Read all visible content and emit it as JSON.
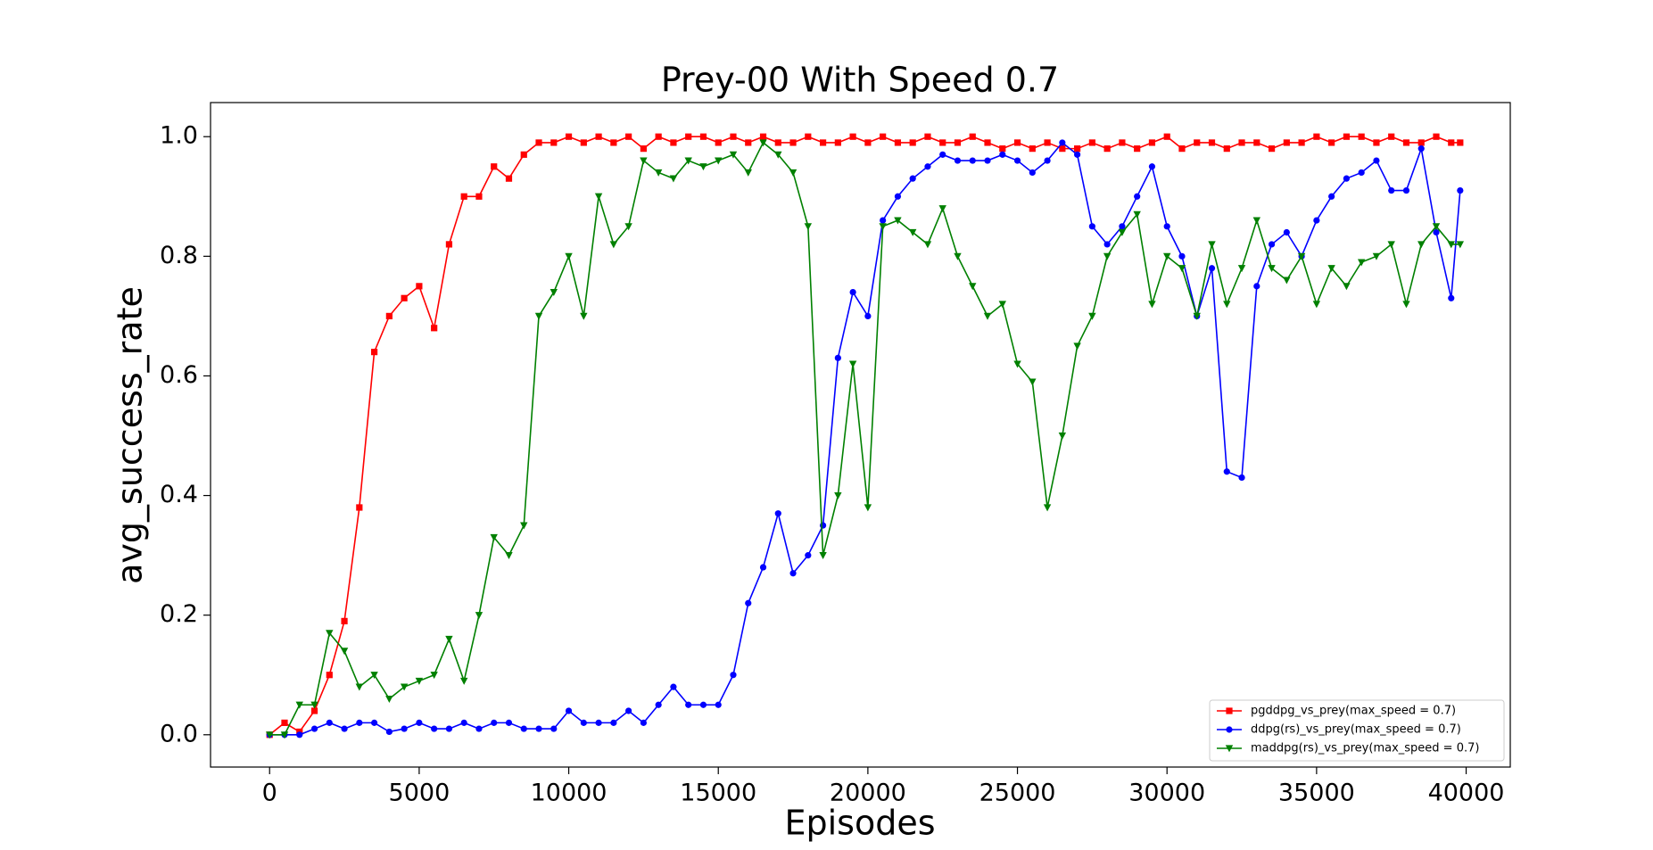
{
  "chart_data": {
    "type": "line",
    "title": "Prey-00 With Speed 0.7",
    "x_label": "Episodes",
    "y_label": "avg_success_rate",
    "x": [
      0,
      500,
      1000,
      1500,
      2000,
      2500,
      3000,
      3500,
      4000,
      4500,
      5000,
      5500,
      6000,
      6500,
      7000,
      7500,
      8000,
      8500,
      9000,
      9500,
      10000,
      10500,
      11000,
      11500,
      12000,
      12500,
      13000,
      13500,
      14000,
      14500,
      15000,
      15500,
      16000,
      16500,
      17000,
      17500,
      18000,
      18500,
      19000,
      19500,
      20000,
      20500,
      21000,
      21500,
      22000,
      22500,
      23000,
      23500,
      24000,
      24500,
      25000,
      25500,
      26000,
      26500,
      27000,
      27500,
      28000,
      28500,
      29000,
      29500,
      30000,
      30500,
      31000,
      31500,
      32000,
      32500,
      33000,
      33500,
      34000,
      34500,
      35000,
      35500,
      36000,
      36500,
      37000,
      37500,
      38000,
      38500,
      39000,
      39500,
      39800
    ],
    "series": [
      {
        "name": "pgddpg_vs_prey(max_speed = 0.7)",
        "color": "#ff0000",
        "marker": "square",
        "values": [
          0,
          0.02,
          0.005,
          0.04,
          0.1,
          0.19,
          0.38,
          0.64,
          0.7,
          0.73,
          0.75,
          0.68,
          0.82,
          0.9,
          0.9,
          0.95,
          0.93,
          0.97,
          0.99,
          0.99,
          1.0,
          0.99,
          1.0,
          0.99,
          1.0,
          0.98,
          1.0,
          0.99,
          1.0,
          1.0,
          0.99,
          1.0,
          0.99,
          1.0,
          0.99,
          0.99,
          1.0,
          0.99,
          0.99,
          1.0,
          0.99,
          1.0,
          0.99,
          0.99,
          1.0,
          0.99,
          0.99,
          1.0,
          0.99,
          0.98,
          0.99,
          0.98,
          0.99,
          0.98,
          0.98,
          0.99,
          0.98,
          0.99,
          0.98,
          0.99,
          1.0,
          0.98,
          0.99,
          0.99,
          0.98,
          0.99,
          0.99,
          0.98,
          0.99,
          0.99,
          1.0,
          0.99,
          1.0,
          1.0,
          0.99,
          1.0,
          0.99,
          0.99,
          1.0,
          0.99,
          0.99
        ]
      },
      {
        "name": "ddpg(rs)_vs_prey(max_speed = 0.7)",
        "color": "#0000ff",
        "marker": "circle",
        "values": [
          0,
          0,
          0,
          0.01,
          0.02,
          0.01,
          0.02,
          0.02,
          0.005,
          0.01,
          0.02,
          0.01,
          0.01,
          0.02,
          0.01,
          0.02,
          0.02,
          0.01,
          0.01,
          0.01,
          0.04,
          0.02,
          0.02,
          0.02,
          0.04,
          0.02,
          0.05,
          0.08,
          0.05,
          0.05,
          0.05,
          0.1,
          0.22,
          0.28,
          0.37,
          0.27,
          0.3,
          0.35,
          0.63,
          0.74,
          0.7,
          0.86,
          0.9,
          0.93,
          0.95,
          0.97,
          0.96,
          0.96,
          0.96,
          0.97,
          0.96,
          0.94,
          0.96,
          0.99,
          0.97,
          0.85,
          0.82,
          0.85,
          0.9,
          0.95,
          0.85,
          0.8,
          0.7,
          0.78,
          0.44,
          0.43,
          0.75,
          0.82,
          0.84,
          0.8,
          0.86,
          0.9,
          0.93,
          0.94,
          0.96,
          0.91,
          0.91,
          0.98,
          0.84,
          0.73,
          0.91
        ]
      },
      {
        "name": "maddpg(rs)_vs_prey(max_speed = 0.7)",
        "color": "#008000",
        "marker": "triangle-down",
        "values": [
          0,
          0,
          0.05,
          0.05,
          0.17,
          0.14,
          0.08,
          0.1,
          0.06,
          0.08,
          0.09,
          0.1,
          0.16,
          0.09,
          0.2,
          0.33,
          0.3,
          0.35,
          0.7,
          0.74,
          0.8,
          0.7,
          0.9,
          0.82,
          0.85,
          0.96,
          0.94,
          0.93,
          0.96,
          0.95,
          0.96,
          0.97,
          0.94,
          0.99,
          0.97,
          0.94,
          0.85,
          0.3,
          0.4,
          0.62,
          0.38,
          0.85,
          0.86,
          0.84,
          0.82,
          0.88,
          0.8,
          0.75,
          0.7,
          0.72,
          0.62,
          0.59,
          0.38,
          0.5,
          0.65,
          0.7,
          0.8,
          0.84,
          0.87,
          0.72,
          0.8,
          0.78,
          0.7,
          0.82,
          0.72,
          0.78,
          0.86,
          0.78,
          0.76,
          0.8,
          0.72,
          0.78,
          0.75,
          0.79,
          0.8,
          0.82,
          0.72,
          0.82,
          0.85,
          0.82,
          0.82
        ]
      }
    ],
    "xlim": [
      -1975,
      41475
    ],
    "ylim": [
      -0.054,
      1.057
    ],
    "xticks": [
      0,
      5000,
      10000,
      15000,
      20000,
      25000,
      30000,
      35000,
      40000
    ],
    "yticks": [
      {
        "value": 0,
        "label": "0.0"
      },
      0.2,
      0.4,
      0.6,
      0.8,
      {
        "value": 1,
        "label": "1.0"
      }
    ],
    "legend": "lower right"
  }
}
